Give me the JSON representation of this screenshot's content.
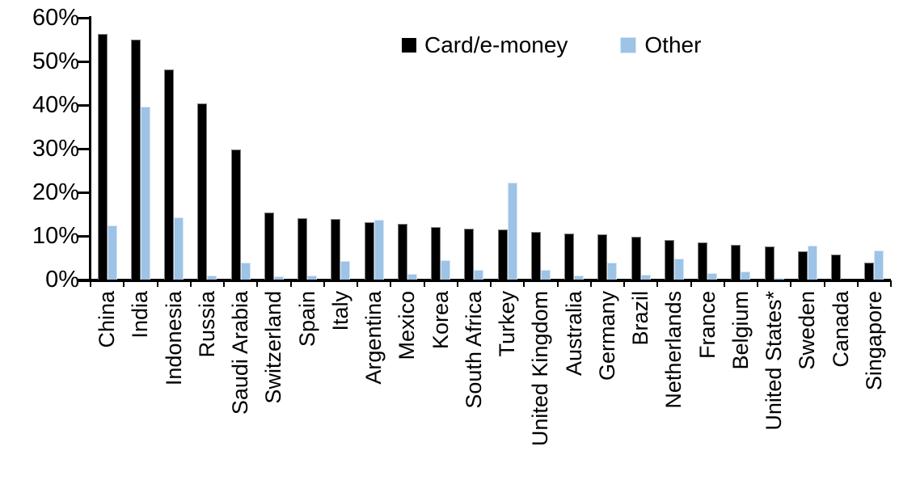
{
  "chart_data": {
    "type": "bar",
    "title": "",
    "categories": [
      "China",
      "India",
      "Indonesia",
      "Russia",
      "Saudi Arabia",
      "Switzerland",
      "Spain",
      "Italy",
      "Argentina",
      "Mexico",
      "Korea",
      "South Africa",
      "Turkey",
      "United Kingdom",
      "Australia",
      "Germany",
      "Brazil",
      "Netherlands",
      "France",
      "Belgium",
      "United States*",
      "Sweden",
      "Canada",
      "Singapore"
    ],
    "series": [
      {
        "name": "Card/e-money",
        "color": "#000000",
        "border_color": "#7f7f7f",
        "values": [
          56.3,
          55.0,
          48.2,
          40.3,
          29.8,
          15.4,
          14.0,
          13.9,
          13.2,
          12.8,
          12.1,
          11.6,
          11.4,
          10.9,
          10.6,
          10.4,
          9.9,
          9.1,
          8.6,
          8.0,
          7.6,
          6.4,
          5.7,
          3.9
        ]
      },
      {
        "name": "Other",
        "color": "#9dc3e6",
        "border_color": "#d6e6f5",
        "values": [
          12.4,
          39.6,
          14.2,
          1.0,
          3.8,
          0.8,
          0.9,
          4.3,
          13.7,
          1.3,
          4.4,
          2.3,
          22.3,
          2.3,
          0.9,
          3.9,
          1.2,
          4.9,
          1.4,
          1.9,
          0.3,
          7.8,
          0.0,
          6.6
        ]
      }
    ],
    "ylim": [
      0,
      60
    ],
    "ytick_step": 10,
    "yticks": [
      "0%",
      "10%",
      "20%",
      "30%",
      "40%",
      "50%",
      "60%"
    ],
    "xlabel": "",
    "ylabel": "",
    "grid": false,
    "legend_position": "top-center"
  }
}
